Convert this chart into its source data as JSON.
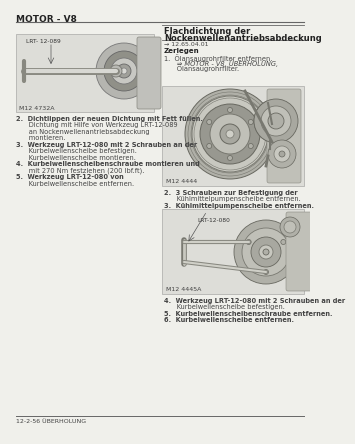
{
  "bg_color": "#f0f0eb",
  "page_bg": "#f0f0eb",
  "header_text": "MOTOR - V8",
  "footer_text": "12-2-56 ÜBERHOLUNG",
  "right_title_line1": "Flachdichtung der",
  "right_title_line2": "Nockenwellenantriebsabdeckung",
  "right_ref": "→ 12.65.04.01",
  "right_section": "Zerlegen",
  "right_item1a": "1.  Ölansaugrohrfilter entfernen.",
  "right_item1b": "      ⇒ MOTOR - V8, ÜBERHOLUNG,",
  "right_item1c": "      Ölansaugrohrfilter.",
  "img1_label": "LRT- 12-089",
  "img1_caption": "M12 4732A",
  "left_item2a": "2.  Dichtlippen der neuen Dichtung mit Fett füllen.",
  "left_item2b": "      Dichtung mit Hilfe von Werkzeug LRT-12-089",
  "left_item2c": "      an Nockenwellenantriebsabdeckung",
  "left_item2d": "      montieren.",
  "left_item3a": "3.  Werkzeug LRT-12-080 mit 2 Schrauben an der",
  "left_item3b": "      Kurbelwellenscheibe befestigen.",
  "left_item3c": "      Kurbelwellenscheibe montieren.",
  "left_item4a": "4.  Kurbelwellenscheibenschraube montieren und",
  "left_item4b": "      mit 270 Nm festziehen (200 lbf.ft).",
  "left_item5a": "5.  Werkzeug LRT-12-080 von",
  "left_item5b": "      Kurbelwellenscheibe entfernen.",
  "img2_caption": "M12 4444",
  "right_item2a": "2.  3 Schrauben zur Befestigung der",
  "right_item2b": "      Kühlmittelpumpenscheibe entfernen.",
  "right_item3a": "3.  Kühlmittelpumpenscheibe entfernen.",
  "img3_label": "LRT-12-080",
  "img3_caption": "M12 4445A",
  "right_item4a": "4.  Werkzeug LRT-12-080 mit 2 Schrauben an der",
  "right_item4b": "      Kurbelwellenscheibe befestigen.",
  "right_item5a": "5.  Kurbelwellenscheibenschraube entfernen.",
  "right_item6a": "6.  Kurbelwellenscheibe entfernen.",
  "divider_color": "#888888",
  "text_color": "#444444",
  "bold_color": "#222222",
  "line_color": "#666666"
}
